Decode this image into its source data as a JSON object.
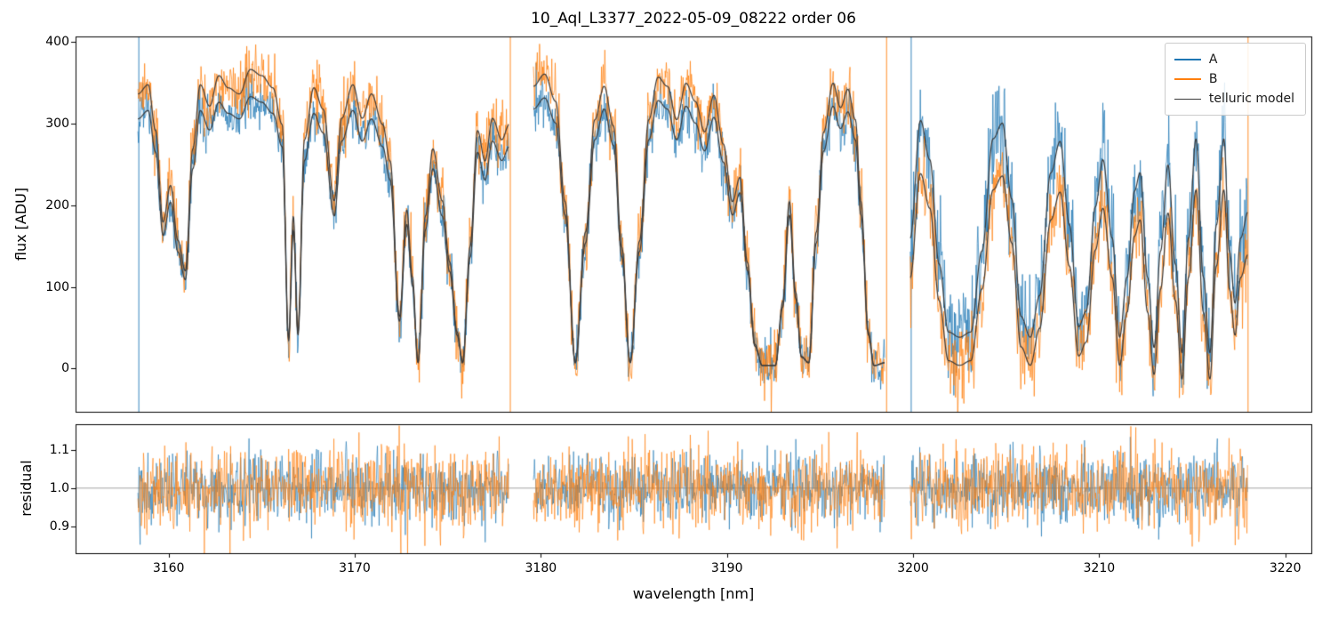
{
  "chart_data": {
    "type": "line",
    "title": "10_Aql_L3377_2022-05-09_08222  order 06",
    "xlabel": "wavelength [nm]",
    "legend": [
      "A",
      "B",
      "telluric model"
    ],
    "legend_position": "upper right",
    "colors": {
      "A": "#1f77b4",
      "B": "#ff7f0e",
      "model": "#3a3a3a",
      "hline": "#999999",
      "spine": "#000000"
    },
    "xlim": [
      3155.0,
      3221.4
    ],
    "xticks": [
      3160,
      3170,
      3180,
      3190,
      3200,
      3210,
      3220
    ],
    "xtick_labels": [
      "3160",
      "3170",
      "3180",
      "3190",
      "3200",
      "3210",
      "3220"
    ],
    "top": {
      "ylabel": "flux [ADU]",
      "ylim": [
        -53,
        407
      ],
      "yticks": [
        0,
        100,
        200,
        300,
        400
      ],
      "ytick_labels": [
        "0",
        "100",
        "200",
        "300",
        "400"
      ]
    },
    "bottom": {
      "ylabel": "residual",
      "ylim": [
        0.83,
        1.167
      ],
      "yticks": [
        0.9,
        1.0,
        1.1
      ],
      "ytick_labels": [
        "0.9",
        "1.0",
        "1.1"
      ],
      "hline": 1.0
    },
    "segments": [
      {
        "x0": 3158.35,
        "x1": 3178.3,
        "A": {
          "scale": 340,
          "offset": 0,
          "sigma": 16
        },
        "B": {
          "scale": 374,
          "offset": 0,
          "sigma": 19
        }
      },
      {
        "x0": 3179.6,
        "x1": 3198.5,
        "A": {
          "scale": 342,
          "offset": 0,
          "sigma": 16
        },
        "B": {
          "scale": 372,
          "offset": 0,
          "sigma": 19
        }
      },
      {
        "x0": 3199.85,
        "x1": 3218.0,
        "A": {
          "scale": 320,
          "offset": 0,
          "sigma": 30
        },
        "B": {
          "scale": 283,
          "offset": -30,
          "sigma": 23
        }
      }
    ],
    "telluric_transmission": [
      [
        3158.35,
        0.9
      ],
      [
        3158.9,
        0.93
      ],
      [
        3159.3,
        0.78
      ],
      [
        3159.7,
        0.48
      ],
      [
        3160.1,
        0.6
      ],
      [
        3160.5,
        0.42
      ],
      [
        3160.9,
        0.32
      ],
      [
        3161.3,
        0.72
      ],
      [
        3161.7,
        0.93
      ],
      [
        3162.2,
        0.86
      ],
      [
        3162.7,
        0.96
      ],
      [
        3163.2,
        0.92
      ],
      [
        3163.8,
        0.9
      ],
      [
        3164.4,
        0.98
      ],
      [
        3165.0,
        0.96
      ],
      [
        3165.6,
        0.92
      ],
      [
        3166.1,
        0.8
      ],
      [
        3166.45,
        0.1
      ],
      [
        3166.7,
        0.5
      ],
      [
        3166.95,
        0.12
      ],
      [
        3167.3,
        0.75
      ],
      [
        3167.8,
        0.92
      ],
      [
        3168.3,
        0.85
      ],
      [
        3168.9,
        0.55
      ],
      [
        3169.3,
        0.82
      ],
      [
        3169.9,
        0.93
      ],
      [
        3170.4,
        0.82
      ],
      [
        3170.9,
        0.9
      ],
      [
        3171.5,
        0.8
      ],
      [
        3171.9,
        0.68
      ],
      [
        3172.4,
        0.17
      ],
      [
        3172.8,
        0.52
      ],
      [
        3173.1,
        0.3
      ],
      [
        3173.4,
        0.02
      ],
      [
        3173.8,
        0.5
      ],
      [
        3174.2,
        0.72
      ],
      [
        3174.7,
        0.55
      ],
      [
        3175.1,
        0.35
      ],
      [
        3175.5,
        0.12
      ],
      [
        3175.8,
        0.02
      ],
      [
        3176.2,
        0.4
      ],
      [
        3176.6,
        0.78
      ],
      [
        3177.0,
        0.68
      ],
      [
        3177.4,
        0.82
      ],
      [
        3177.9,
        0.75
      ],
      [
        3178.3,
        0.8
      ],
      [
        3179.6,
        0.93
      ],
      [
        3180.2,
        0.97
      ],
      [
        3180.8,
        0.88
      ],
      [
        3181.3,
        0.55
      ],
      [
        3181.85,
        0.02
      ],
      [
        3182.4,
        0.45
      ],
      [
        3182.9,
        0.82
      ],
      [
        3183.4,
        0.93
      ],
      [
        3183.9,
        0.8
      ],
      [
        3184.35,
        0.4
      ],
      [
        3184.8,
        0.02
      ],
      [
        3185.3,
        0.42
      ],
      [
        3185.8,
        0.82
      ],
      [
        3186.3,
        0.96
      ],
      [
        3186.8,
        0.93
      ],
      [
        3187.3,
        0.82
      ],
      [
        3187.8,
        0.94
      ],
      [
        3188.3,
        0.88
      ],
      [
        3188.8,
        0.78
      ],
      [
        3189.3,
        0.9
      ],
      [
        3189.8,
        0.74
      ],
      [
        3190.3,
        0.55
      ],
      [
        3190.7,
        0.63
      ],
      [
        3191.1,
        0.35
      ],
      [
        3191.5,
        0.08
      ],
      [
        3191.9,
        0.01
      ],
      [
        3192.6,
        0.01
      ],
      [
        3193.0,
        0.22
      ],
      [
        3193.35,
        0.55
      ],
      [
        3193.7,
        0.25
      ],
      [
        3194.0,
        0.04
      ],
      [
        3194.4,
        0.02
      ],
      [
        3194.8,
        0.45
      ],
      [
        3195.2,
        0.78
      ],
      [
        3195.7,
        0.94
      ],
      [
        3196.1,
        0.86
      ],
      [
        3196.5,
        0.92
      ],
      [
        3196.9,
        0.82
      ],
      [
        3197.2,
        0.55
      ],
      [
        3197.6,
        0.12
      ],
      [
        3197.9,
        0.01
      ],
      [
        3198.5,
        0.02
      ],
      [
        3199.85,
        0.5
      ],
      [
        3200.4,
        0.95
      ],
      [
        3200.9,
        0.8
      ],
      [
        3201.4,
        0.4
      ],
      [
        3201.9,
        0.14
      ],
      [
        3202.5,
        0.12
      ],
      [
        3203.1,
        0.14
      ],
      [
        3203.7,
        0.45
      ],
      [
        3204.3,
        0.88
      ],
      [
        3204.8,
        0.94
      ],
      [
        3205.3,
        0.65
      ],
      [
        3205.8,
        0.2
      ],
      [
        3206.3,
        0.12
      ],
      [
        3206.8,
        0.28
      ],
      [
        3207.4,
        0.75
      ],
      [
        3207.9,
        0.87
      ],
      [
        3208.4,
        0.55
      ],
      [
        3208.9,
        0.16
      ],
      [
        3209.3,
        0.22
      ],
      [
        3209.8,
        0.62
      ],
      [
        3210.2,
        0.8
      ],
      [
        3210.7,
        0.5
      ],
      [
        3211.1,
        0.12
      ],
      [
        3211.5,
        0.35
      ],
      [
        3211.9,
        0.68
      ],
      [
        3212.2,
        0.75
      ],
      [
        3212.6,
        0.35
      ],
      [
        3212.95,
        0.08
      ],
      [
        3213.3,
        0.45
      ],
      [
        3213.7,
        0.78
      ],
      [
        3214.1,
        0.4
      ],
      [
        3214.45,
        0.06
      ],
      [
        3214.8,
        0.5
      ],
      [
        3215.2,
        0.88
      ],
      [
        3215.6,
        0.35
      ],
      [
        3215.95,
        0.06
      ],
      [
        3216.3,
        0.55
      ],
      [
        3216.7,
        0.88
      ],
      [
        3217.0,
        0.45
      ],
      [
        3217.3,
        0.25
      ],
      [
        3217.6,
        0.5
      ],
      [
        3218.0,
        0.6
      ]
    ],
    "residual_sigma": {
      "A": 0.045,
      "B": 0.055
    },
    "spikes": [
      {
        "x": 3158.4,
        "series": "A"
      },
      {
        "x": 3178.36,
        "series": "B"
      },
      {
        "x": 3198.58,
        "series": "B"
      },
      {
        "x": 3199.9,
        "series": "A"
      },
      {
        "x": 3218.0,
        "series": "B"
      }
    ],
    "noise_seed": 42
  }
}
